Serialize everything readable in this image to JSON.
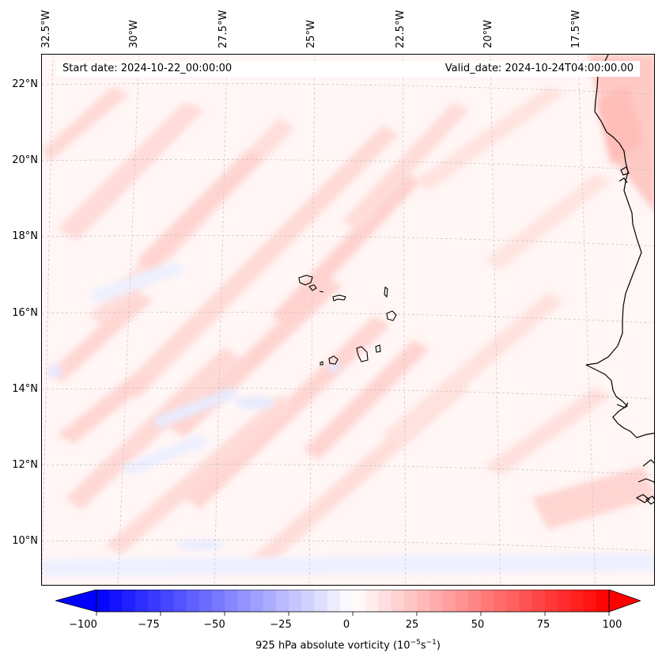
{
  "map": {
    "lon_labels": [
      "32.5°W",
      "30°W",
      "27.5°W",
      "25°W",
      "22.5°W",
      "20°W",
      "17.5°W"
    ],
    "lat_labels": [
      "22°N",
      "20°N",
      "18°N",
      "16°N",
      "14°N",
      "12°N",
      "10°N"
    ],
    "start_date": "Start date: 2024-10-22_00:00:00",
    "valid_date": "Valid_date: 2024-10-24T04:00:00.00",
    "field": "925 hPa absolute vorticity",
    "gridlines": true,
    "colormap": "bwr",
    "colors": {
      "negative": "#0000ff",
      "zero": "#ffffff",
      "positive": "#ff0000",
      "coastline": "#000000"
    }
  },
  "colorbar": {
    "ticks": [
      "−100",
      "−75",
      "−50",
      "−25",
      "0",
      "25",
      "50",
      "75",
      "100"
    ],
    "label_prefix": "925 hPa absolute vorticity (10",
    "label_exp1": "−5",
    "label_mid": "s",
    "label_exp2": "−1",
    "label_suffix": ")",
    "min": -100,
    "max": 100
  }
}
